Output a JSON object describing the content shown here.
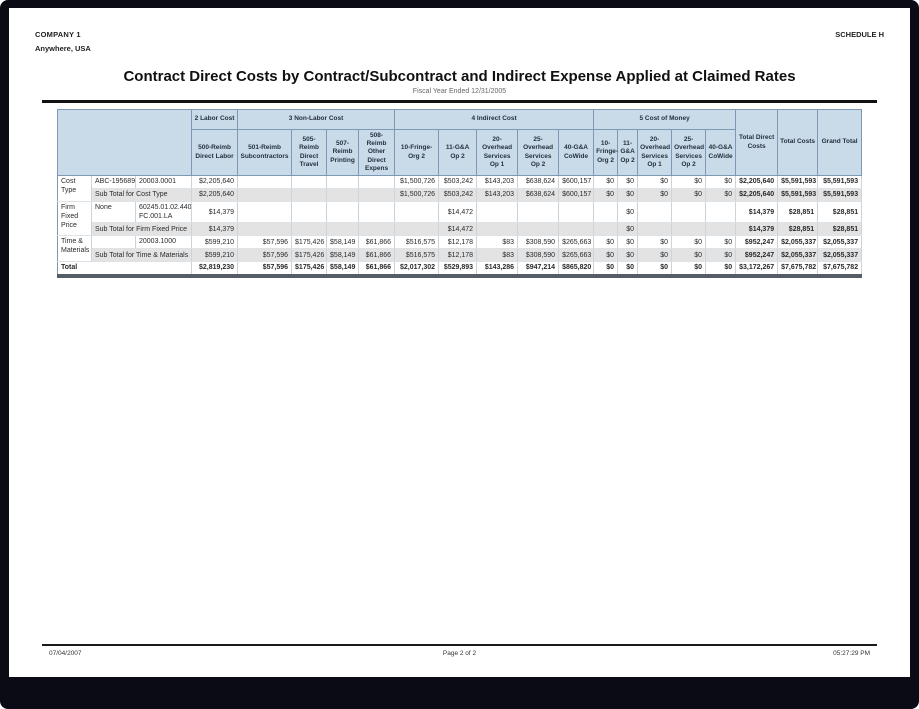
{
  "page": {
    "company_name": "COMPANY 1",
    "company_location": "Anywhere, USA",
    "schedule_label": "SCHEDULE H",
    "title": "Contract Direct Costs by Contract/Subcontract and Indirect Expense Applied at Claimed Rates",
    "subtitle": "Fiscal Year Ended 12/31/2005",
    "footer_date": "07/04/2007",
    "footer_page": "Page 2 of 2",
    "footer_time": "05:27:29 PM"
  },
  "colors": {
    "header_bg": "#c9dae8",
    "header_border": "#7d99b5",
    "subtotal_row_bg": "#e3e3e3",
    "table_bottom_bar": "#555e66",
    "page_surround": "#0b0b16"
  },
  "table": {
    "header_row1": [
      {
        "label": "",
        "colspan": 3,
        "rowspan": 2
      },
      {
        "label": "2 Labor Cost",
        "colspan": 1
      },
      {
        "label": "3 Non-Labor Cost",
        "colspan": 4
      },
      {
        "label": "4 Indirect Cost",
        "colspan": 5
      },
      {
        "label": "5 Cost of Money",
        "colspan": 5
      },
      {
        "label": "Total Direct Costs",
        "rowspan": 2
      },
      {
        "label": "Total Costs",
        "rowspan": 2
      },
      {
        "label": "Grand Total",
        "rowspan": 2
      }
    ],
    "header_row2": [
      "500-Reimb Direct Labor",
      "501-Reimb Subcontractors",
      "505-Reimb Direct Travel",
      "507-Reimb Printing",
      "508-Reimb Other Direct Expens",
      "10-Fringe-Org 2",
      "11-G&A Op 2",
      "20-Overhead Services Op 1",
      "25-Overhead Services Op 2",
      "40-G&A CoWide",
      "10-Fringe-Org 2",
      "11-G&A Op 2",
      "20-Overhead Services Op 1",
      "25-Overhead Services Op 2",
      "40-G&A CoWide"
    ],
    "rows": [
      {
        "style": "detail",
        "cells": [
          {
            "t": "Cost Type",
            "rs": 2,
            "a": "l",
            "g": 1
          },
          {
            "t": "ABC-195689",
            "a": "l"
          },
          {
            "t": "20003.0001",
            "a": "l"
          },
          {
            "t": "$2,205,640"
          },
          {
            "t": ""
          },
          {
            "t": ""
          },
          {
            "t": ""
          },
          {
            "t": ""
          },
          {
            "t": "$1,500,726"
          },
          {
            "t": "$503,242"
          },
          {
            "t": "$143,203"
          },
          {
            "t": "$638,624"
          },
          {
            "t": "$600,157"
          },
          {
            "t": "$0"
          },
          {
            "t": "$0"
          },
          {
            "t": "$0"
          },
          {
            "t": "$0"
          },
          {
            "t": "$0"
          },
          {
            "t": "$2,205,640",
            "b": 1
          },
          {
            "t": "$5,591,593",
            "b": 1
          },
          {
            "t": "$5,591,593",
            "b": 1
          }
        ]
      },
      {
        "style": "subtotal",
        "cells": [
          {
            "t": "Sub Total for Cost Type",
            "cs": 2,
            "a": "l"
          },
          {
            "t": "$2,205,640"
          },
          {
            "t": ""
          },
          {
            "t": ""
          },
          {
            "t": ""
          },
          {
            "t": ""
          },
          {
            "t": "$1,500,726"
          },
          {
            "t": "$503,242"
          },
          {
            "t": "$143,203"
          },
          {
            "t": "$638,624"
          },
          {
            "t": "$600,157"
          },
          {
            "t": "$0"
          },
          {
            "t": "$0"
          },
          {
            "t": "$0"
          },
          {
            "t": "$0"
          },
          {
            "t": "$0"
          },
          {
            "t": "$2,205,640",
            "b": 1
          },
          {
            "t": "$5,591,593",
            "b": 1
          },
          {
            "t": "$5,591,593",
            "b": 1
          }
        ]
      },
      {
        "style": "detail",
        "cells": [
          {
            "t": "Firm Fixed Price",
            "rs": 2,
            "a": "l",
            "g": 1
          },
          {
            "t": "None",
            "a": "l"
          },
          {
            "t": "60245.01.02.440. FC.001.LA",
            "a": "l",
            "w": 1
          },
          {
            "t": "$14,379"
          },
          {
            "t": ""
          },
          {
            "t": ""
          },
          {
            "t": ""
          },
          {
            "t": ""
          },
          {
            "t": ""
          },
          {
            "t": "$14,472"
          },
          {
            "t": ""
          },
          {
            "t": ""
          },
          {
            "t": ""
          },
          {
            "t": ""
          },
          {
            "t": "$0"
          },
          {
            "t": ""
          },
          {
            "t": ""
          },
          {
            "t": ""
          },
          {
            "t": "$14,379",
            "b": 1
          },
          {
            "t": "$28,851",
            "b": 1
          },
          {
            "t": "$28,851",
            "b": 1
          }
        ]
      },
      {
        "style": "subtotal",
        "cells": [
          {
            "t": "Sub Total for Firm Fixed Price",
            "cs": 2,
            "a": "l"
          },
          {
            "t": "$14,379"
          },
          {
            "t": ""
          },
          {
            "t": ""
          },
          {
            "t": ""
          },
          {
            "t": ""
          },
          {
            "t": ""
          },
          {
            "t": "$14,472"
          },
          {
            "t": ""
          },
          {
            "t": ""
          },
          {
            "t": ""
          },
          {
            "t": ""
          },
          {
            "t": "$0"
          },
          {
            "t": ""
          },
          {
            "t": ""
          },
          {
            "t": ""
          },
          {
            "t": "$14,379",
            "b": 1
          },
          {
            "t": "$28,851",
            "b": 1
          },
          {
            "t": "$28,851",
            "b": 1
          }
        ]
      },
      {
        "style": "detail",
        "cells": [
          {
            "t": "Time & Materials",
            "rs": 2,
            "a": "l",
            "g": 1
          },
          {
            "t": "",
            "a": "l"
          },
          {
            "t": "20003.1000",
            "a": "l"
          },
          {
            "t": "$599,210"
          },
          {
            "t": "$57,596"
          },
          {
            "t": "$175,426"
          },
          {
            "t": "$58,149"
          },
          {
            "t": "$61,866"
          },
          {
            "t": "$516,575"
          },
          {
            "t": "$12,178"
          },
          {
            "t": "$83"
          },
          {
            "t": "$308,590"
          },
          {
            "t": "$265,663"
          },
          {
            "t": "$0"
          },
          {
            "t": "$0"
          },
          {
            "t": "$0"
          },
          {
            "t": "$0"
          },
          {
            "t": "$0"
          },
          {
            "t": "$952,247",
            "b": 1
          },
          {
            "t": "$2,055,337",
            "b": 1
          },
          {
            "t": "$2,055,337",
            "b": 1
          }
        ]
      },
      {
        "style": "subtotal",
        "cells": [
          {
            "t": "Sub Total for Time & Materials",
            "cs": 2,
            "a": "l"
          },
          {
            "t": "$599,210"
          },
          {
            "t": "$57,596"
          },
          {
            "t": "$175,426"
          },
          {
            "t": "$58,149"
          },
          {
            "t": "$61,866"
          },
          {
            "t": "$516,575"
          },
          {
            "t": "$12,178"
          },
          {
            "t": "$83"
          },
          {
            "t": "$308,590"
          },
          {
            "t": "$265,663"
          },
          {
            "t": "$0"
          },
          {
            "t": "$0"
          },
          {
            "t": "$0"
          },
          {
            "t": "$0"
          },
          {
            "t": "$0"
          },
          {
            "t": "$952,247",
            "b": 1
          },
          {
            "t": "$2,055,337",
            "b": 1
          },
          {
            "t": "$2,055,337",
            "b": 1
          }
        ]
      },
      {
        "style": "total",
        "cells": [
          {
            "t": "Total",
            "cs": 3,
            "a": "l",
            "b": 1
          },
          {
            "t": "$2,819,230"
          },
          {
            "t": "$57,596"
          },
          {
            "t": "$175,426"
          },
          {
            "t": "$58,149"
          },
          {
            "t": "$61,866"
          },
          {
            "t": "$2,017,302"
          },
          {
            "t": "$529,893"
          },
          {
            "t": "$143,286"
          },
          {
            "t": "$947,214"
          },
          {
            "t": "$865,820"
          },
          {
            "t": "$0"
          },
          {
            "t": "$0"
          },
          {
            "t": "$0"
          },
          {
            "t": "$0"
          },
          {
            "t": "$0"
          },
          {
            "t": "$3,172,267"
          },
          {
            "t": "$7,675,782"
          },
          {
            "t": "$7,675,782"
          }
        ]
      }
    ]
  }
}
